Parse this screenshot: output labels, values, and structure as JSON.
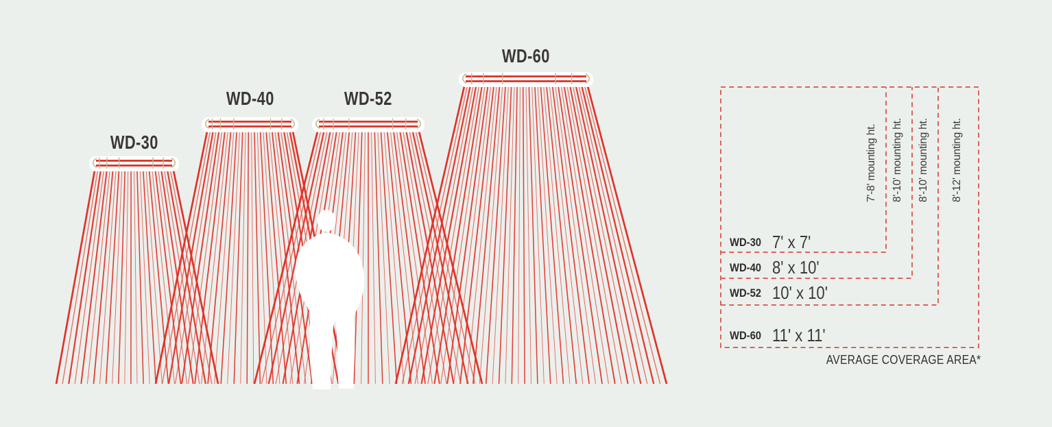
{
  "heaters": [
    {
      "label": "WD-30",
      "coverage": "7' x 7'",
      "mounting_height": "7'-8' mounting ht."
    },
    {
      "label": "WD-40",
      "coverage": "8' x 10'",
      "mounting_height": "8'-10' mounting ht."
    },
    {
      "label": "WD-52",
      "coverage": "10' x 10'",
      "mounting_height": "8'-10' mounting ht."
    },
    {
      "label": "WD-60",
      "coverage": "11' x 11'",
      "mounting_height": "8'-12' mounting ht."
    }
  ],
  "legend": {
    "caption": "AVERAGE COVERAGE AREA*"
  },
  "colors": {
    "background": "#ecf0ed",
    "beam_red": "#e03328",
    "tube_red": "#d92f24",
    "fixture_tan": "#c8b78c",
    "legend_dash_red": "#d9635a",
    "text_dark": "#3a3835",
    "silhouette_white": "#ffffff"
  }
}
